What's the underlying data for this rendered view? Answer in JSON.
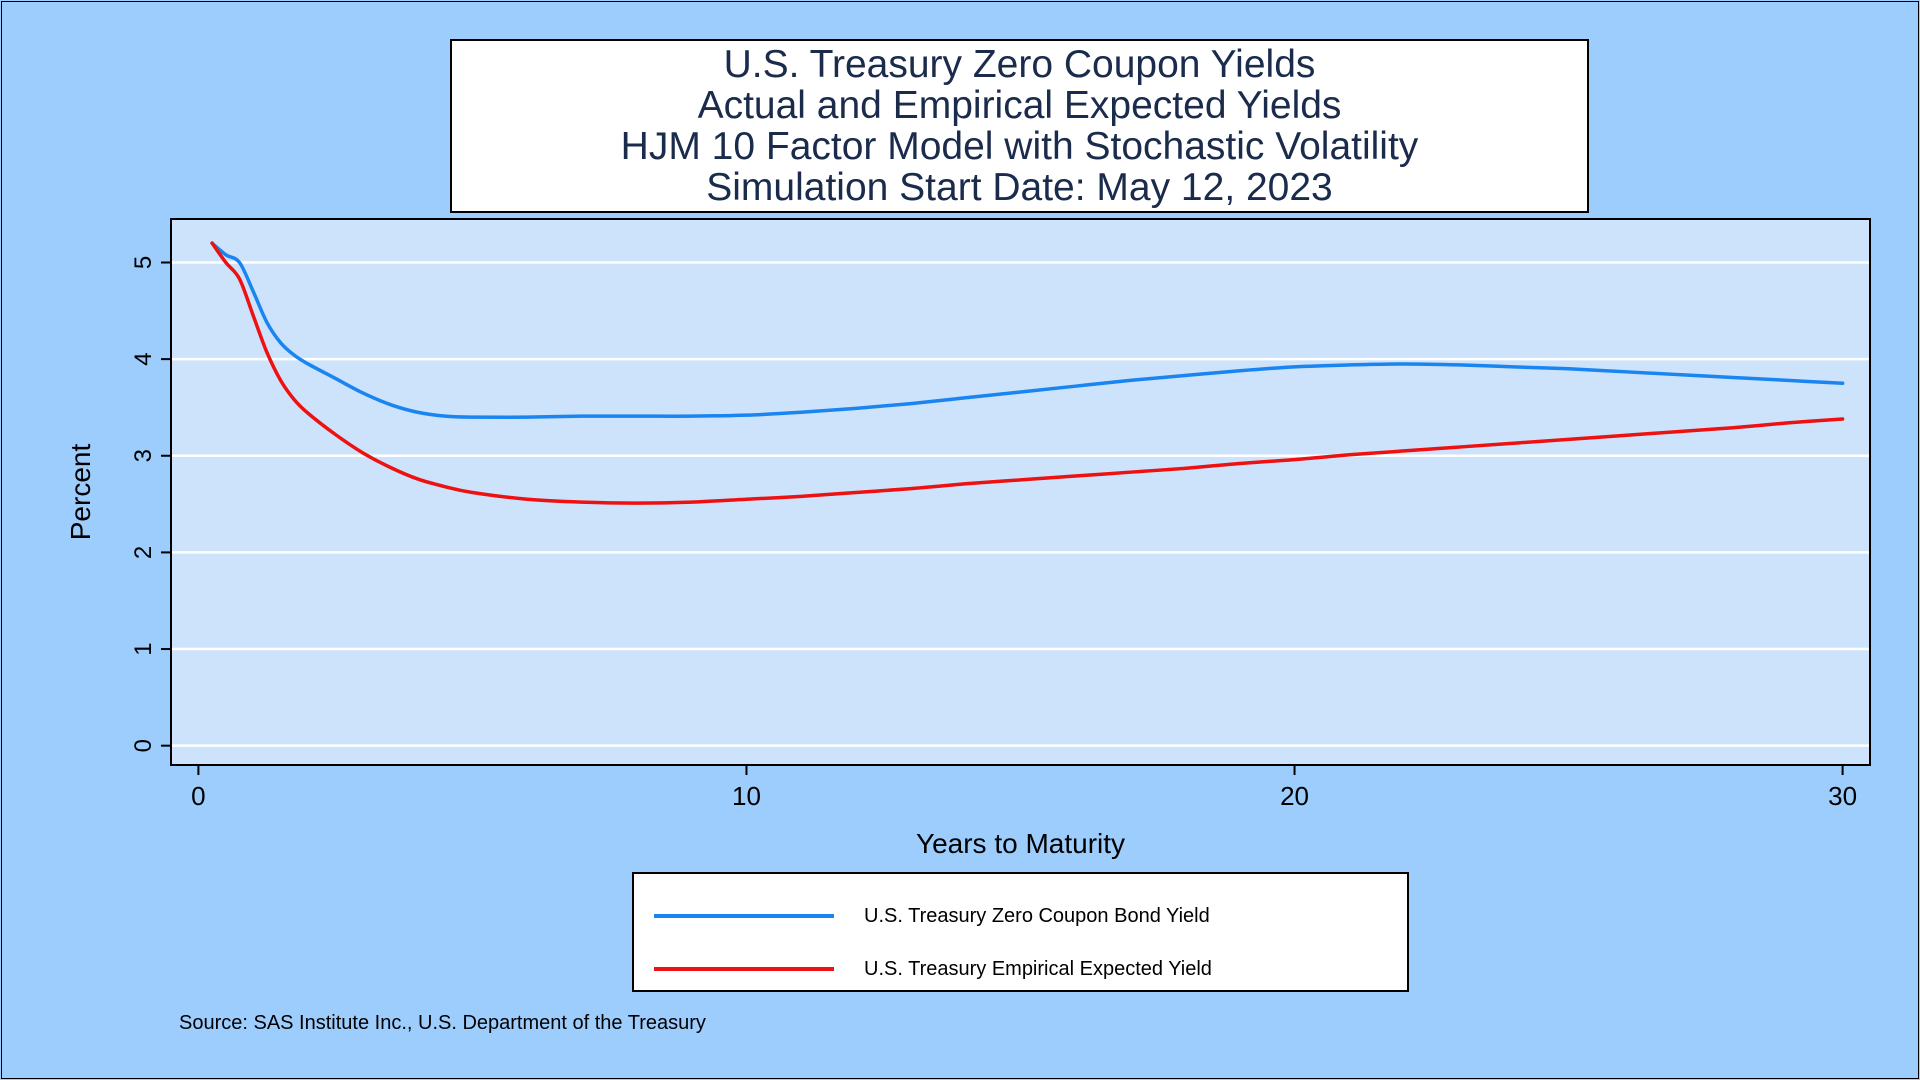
{
  "colors": {
    "background": "#9dcdfd",
    "plot_background": "#cce3fb",
    "gridline": "#ffffff",
    "title_text": "#1a2b4c",
    "zero_coupon_series": "#1a85f0",
    "empirical_series": "#ee1111"
  },
  "title_lines": [
    "U.S. Treasury Zero Coupon Yields",
    "Actual and Empirical Expected Yields",
    "HJM 10 Factor Model with Stochastic Volatility",
    "Simulation Start Date: May 12, 2023"
  ],
  "legend": {
    "items": [
      {
        "label": "U.S. Treasury Zero Coupon Bond Yield"
      },
      {
        "label": "U.S. Treasury Empirical Expected Yield"
      }
    ]
  },
  "source_note": "Source: SAS Institute Inc., U.S. Department of the Treasury",
  "chart_data": {
    "type": "line",
    "title": "U.S. Treasury Zero Coupon Yields Actual and Empirical Expected Yields HJM 10 Factor Model with Stochastic Volatility Simulation Start Date: May 12, 2023",
    "xlabel": "Years to Maturity",
    "ylabel": "Percent",
    "xlim": [
      -0.5,
      30.5
    ],
    "ylim": [
      -0.2,
      5.45
    ],
    "xticks": [
      0,
      10,
      20,
      30
    ],
    "yticks": [
      0,
      1,
      2,
      3,
      4,
      5
    ],
    "grid": true,
    "legend_position": "bottom-center",
    "series": [
      {
        "name": "U.S. Treasury Zero Coupon Bond Yield",
        "color": "#1a85f0",
        "x": [
          0.25,
          0.5,
          0.75,
          1,
          1.25,
          1.5,
          1.75,
          2,
          2.5,
          3,
          3.5,
          4,
          4.5,
          5,
          6,
          7,
          8,
          9,
          10,
          11,
          12,
          13,
          14,
          15,
          16,
          17,
          18,
          19,
          20,
          21,
          22,
          23,
          24,
          25,
          26,
          27,
          28,
          29,
          30
        ],
        "y": [
          5.2,
          5.08,
          5.0,
          4.7,
          4.38,
          4.17,
          4.04,
          3.95,
          3.8,
          3.65,
          3.53,
          3.45,
          3.41,
          3.4,
          3.4,
          3.41,
          3.41,
          3.41,
          3.42,
          3.45,
          3.49,
          3.54,
          3.6,
          3.66,
          3.72,
          3.78,
          3.83,
          3.88,
          3.92,
          3.94,
          3.95,
          3.94,
          3.92,
          3.9,
          3.87,
          3.84,
          3.81,
          3.78,
          3.75
        ]
      },
      {
        "name": "U.S. Treasury Empirical Expected Yield",
        "color": "#ee1111",
        "x": [
          0.25,
          0.5,
          0.75,
          1,
          1.25,
          1.5,
          1.75,
          2,
          2.5,
          3,
          3.5,
          4,
          4.5,
          5,
          6,
          7,
          8,
          9,
          10,
          11,
          12,
          13,
          14,
          15,
          16,
          17,
          18,
          19,
          20,
          21,
          22,
          23,
          24,
          25,
          26,
          27,
          28,
          29,
          30
        ],
        "y": [
          5.2,
          5.0,
          4.83,
          4.45,
          4.07,
          3.78,
          3.58,
          3.44,
          3.22,
          3.03,
          2.88,
          2.76,
          2.68,
          2.62,
          2.55,
          2.52,
          2.51,
          2.52,
          2.55,
          2.58,
          2.62,
          2.66,
          2.71,
          2.75,
          2.79,
          2.83,
          2.87,
          2.92,
          2.96,
          3.01,
          3.05,
          3.09,
          3.13,
          3.17,
          3.21,
          3.25,
          3.29,
          3.34,
          3.38
        ]
      }
    ]
  }
}
